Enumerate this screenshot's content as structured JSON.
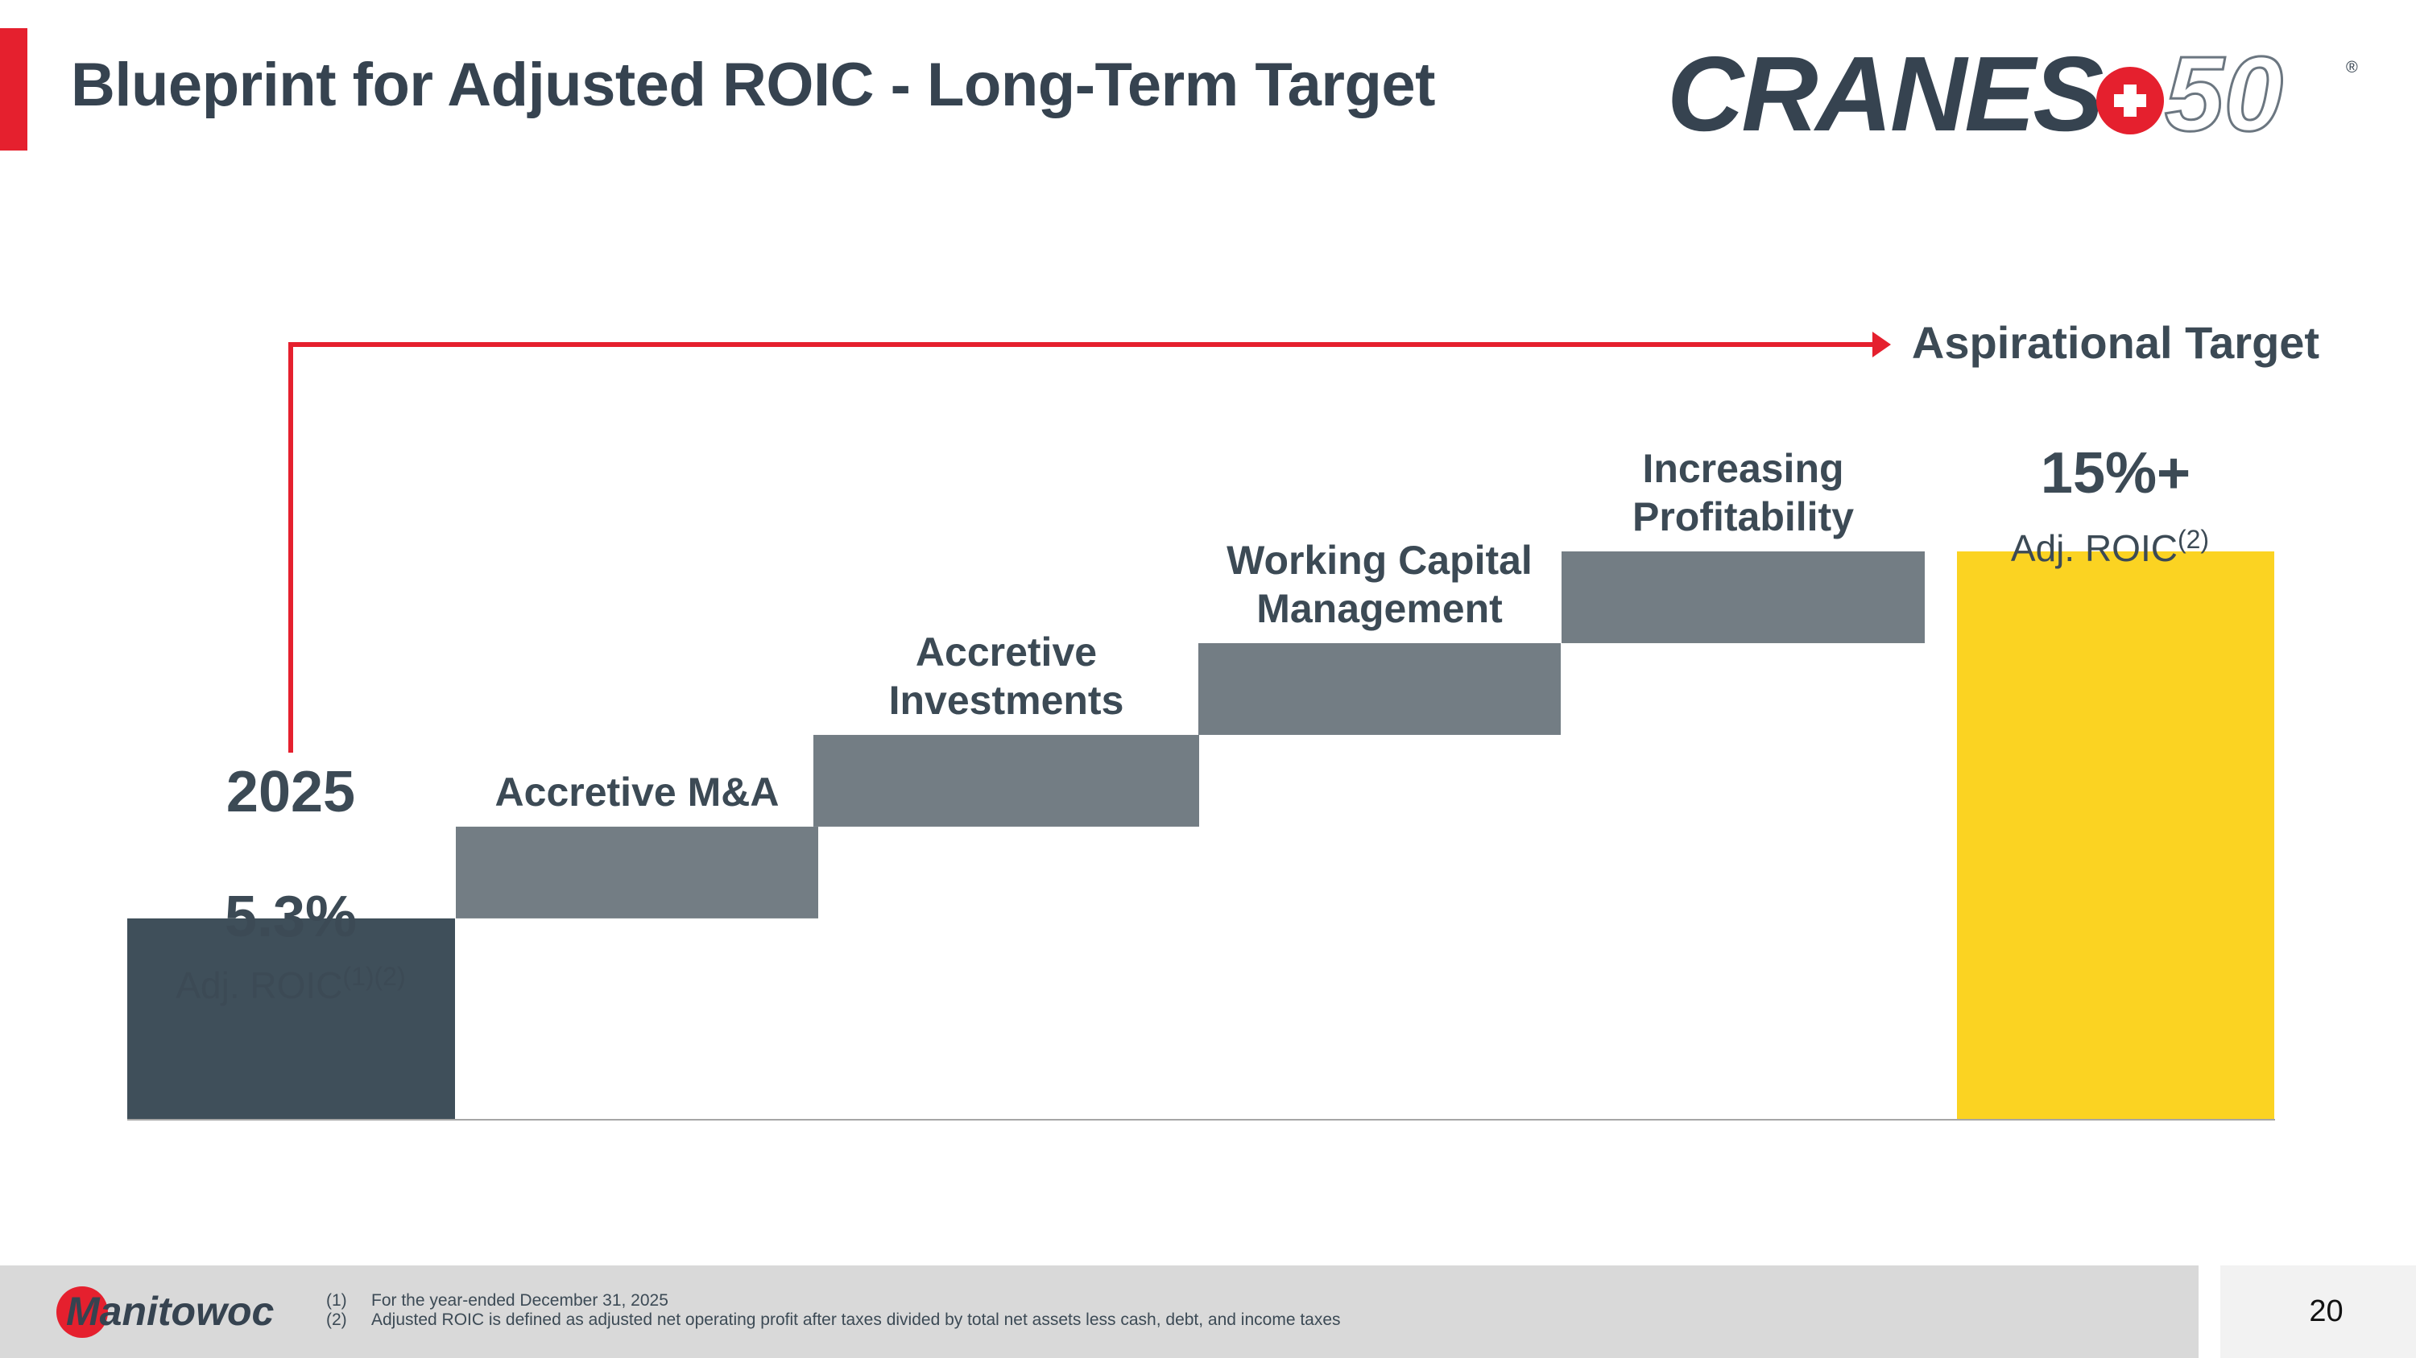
{
  "slide": {
    "title": "Blueprint for Adjusted ROIC - Long-Term Target",
    "page_number": "20"
  },
  "brand": {
    "logo_text": "CRANES",
    "logo_number": "50",
    "logo_mark": "®",
    "footer_logo_text": "Manitowoc",
    "accent_color": "#e5202e",
    "dark_color": "#3c4a55"
  },
  "footnotes": [
    {
      "num": "(1)",
      "text": "For the year-ended December 31, 2025"
    },
    {
      "num": "(2)",
      "text": "Adjusted ROIC is defined as adjusted net operating profit after taxes divided by total net assets less cash, debt, and income taxes"
    }
  ],
  "chart_data": {
    "type": "waterfall",
    "start": {
      "year": "2025",
      "value": 5.3,
      "value_label": "5.3%",
      "metric_label": "Adj. ROIC",
      "superscript": "(1)(2)",
      "color": "#3f4f5a"
    },
    "steps": [
      {
        "label_lines": [
          "Accretive M&A"
        ],
        "increment": 2.425,
        "color": "#737d84"
      },
      {
        "label_lines": [
          "Accretive",
          "Investments"
        ],
        "increment": 2.425,
        "color": "#737d84"
      },
      {
        "label_lines": [
          "Working Capital",
          "Management"
        ],
        "increment": 2.425,
        "color": "#737d84"
      },
      {
        "label_lines": [
          "Increasing",
          "Profitability"
        ],
        "increment": 2.425,
        "color": "#737d84"
      }
    ],
    "target": {
      "heading": "Aspirational Target",
      "value": 15,
      "value_label": "15%+",
      "metric_label": "Adj. ROIC",
      "superscript": "(2)",
      "color": "#fbd322"
    },
    "ylim": [
      0,
      15
    ],
    "arrow_color": "#e5202e"
  }
}
